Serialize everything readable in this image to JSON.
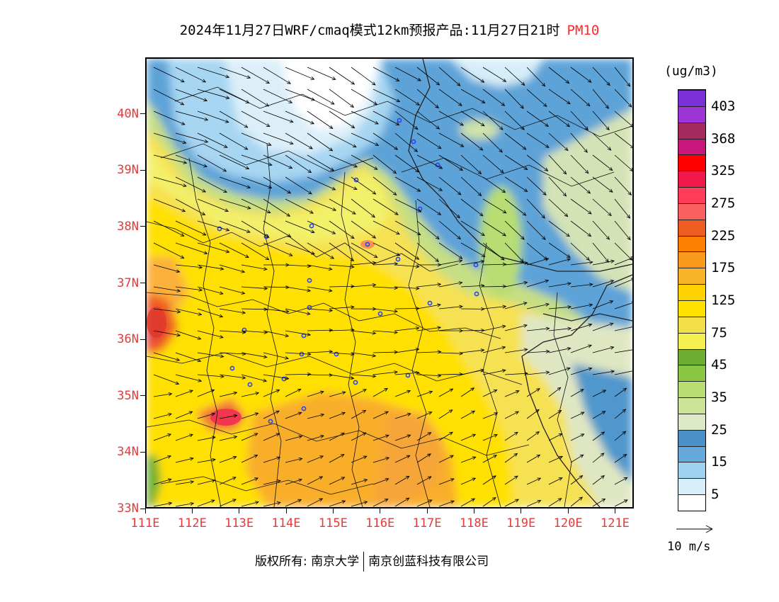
{
  "title": {
    "text": "2024年11月27日WRF/cmaq模式12km预报产品:11月27日21时",
    "variable": "PM10"
  },
  "map": {
    "lat_labels": [
      "40N",
      "39N",
      "38N",
      "37N",
      "36N",
      "35N",
      "34N",
      "33N"
    ],
    "lat_values": [
      40,
      39,
      38,
      37,
      36,
      35,
      34,
      33
    ],
    "lon_labels": [
      "111E",
      "112E",
      "113E",
      "114E",
      "115E",
      "116E",
      "117E",
      "118E",
      "119E",
      "120E",
      "121E"
    ],
    "lon_values": [
      111,
      112,
      113,
      114,
      115,
      116,
      117,
      118,
      119,
      120,
      121
    ],
    "extent": {
      "lon_min": 111,
      "lon_max": 121.4,
      "lat_min": 33,
      "lat_max": 41
    },
    "accent_color": "#e83a3a",
    "city_marker_color": "#2a45e8"
  },
  "legend": {
    "unit": "(ug/m3)",
    "labels": [
      "403",
      "368",
      "325",
      "275",
      "225",
      "175",
      "125",
      "75",
      "45",
      "35",
      "25",
      "15",
      "5"
    ],
    "colors": [
      "#7b2fd8",
      "#9b35d6",
      "#a52a5e",
      "#c8167c",
      "#ff0000",
      "#f0184a",
      "#ff3c5a",
      "#fb6060",
      "#ef5c22",
      "#ff8000",
      "#fc9a1e",
      "#f8b428",
      "#ffd200",
      "#ffe200",
      "#f3df4a",
      "#f4f050",
      "#6cad32",
      "#8ac644",
      "#b8dd72",
      "#cde39a",
      "#dde8c6",
      "#4a90c8",
      "#65a8dc",
      "#9fd2f0",
      "#d6eef9",
      "#ffffff"
    ]
  },
  "wind_reference": {
    "label": "10 m/s"
  },
  "footer": {
    "copyright_prefix": "版权所有: 南京大学",
    "copyright_company": "南京创蓝科技有限公司"
  }
}
